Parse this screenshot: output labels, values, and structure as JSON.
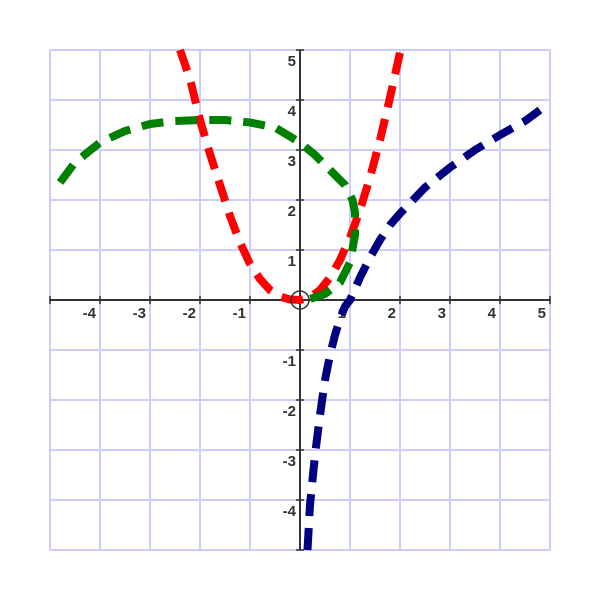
{
  "chart_data": {
    "type": "line",
    "title": "",
    "xlabel": "",
    "ylabel": "",
    "xlim": [
      -5,
      5
    ],
    "ylim": [
      -5,
      5
    ],
    "grid": true,
    "x_ticks": [
      "-4",
      "-3",
      "-2",
      "-1",
      "1",
      "2",
      "3",
      "4",
      "5"
    ],
    "y_ticks": [
      "5",
      "4",
      "3",
      "2",
      "1",
      "-1",
      "-2",
      "-3",
      "-4"
    ],
    "colors": {
      "grid": "#ccccff",
      "axis": "#333333",
      "tick_label": "#333333"
    },
    "series": [
      {
        "color": "#ff0000",
        "style": "dashed",
        "points": [
          [
            -2.4,
            5.0
          ],
          [
            -2.2,
            4.42
          ],
          [
            -2.0,
            3.6
          ],
          [
            -1.8,
            2.92
          ],
          [
            -1.6,
            2.3
          ],
          [
            -1.4,
            1.68
          ],
          [
            -1.2,
            1.15
          ],
          [
            -1.0,
            0.72
          ],
          [
            -0.8,
            0.42
          ],
          [
            -0.6,
            0.2
          ],
          [
            -0.4,
            0.07
          ],
          [
            -0.2,
            0.01
          ],
          [
            0.0,
            0.0
          ],
          [
            0.2,
            0.05
          ],
          [
            0.4,
            0.2
          ],
          [
            0.6,
            0.45
          ],
          [
            0.8,
            0.8
          ],
          [
            1.0,
            1.25
          ],
          [
            1.2,
            1.8
          ],
          [
            1.4,
            2.45
          ],
          [
            1.6,
            3.2
          ],
          [
            1.8,
            4.05
          ],
          [
            2.0,
            4.95
          ],
          [
            2.02,
            5.0
          ]
        ]
      },
      {
        "color": "#008000",
        "style": "dashed",
        "points": [
          [
            -4.8,
            2.35
          ],
          [
            -4.5,
            2.75
          ],
          [
            -4.0,
            3.15
          ],
          [
            -3.5,
            3.38
          ],
          [
            -3.0,
            3.52
          ],
          [
            -2.5,
            3.58
          ],
          [
            -2.0,
            3.6
          ],
          [
            -1.5,
            3.6
          ],
          [
            -1.0,
            3.55
          ],
          [
            -0.5,
            3.45
          ],
          [
            0.0,
            3.15
          ],
          [
            0.3,
            2.9
          ],
          [
            0.6,
            2.6
          ],
          [
            0.9,
            2.3
          ],
          [
            1.05,
            2.0
          ],
          [
            1.1,
            1.75
          ],
          [
            1.1,
            1.3
          ],
          [
            1.0,
            0.75
          ],
          [
            0.8,
            0.35
          ],
          [
            0.5,
            0.12
          ],
          [
            0.2,
            0.02
          ],
          [
            0.0,
            0.0
          ]
        ]
      },
      {
        "color": "#000080",
        "style": "dashed",
        "points": [
          [
            0.15,
            -5.0
          ],
          [
            0.2,
            -4.1
          ],
          [
            0.3,
            -3.1
          ],
          [
            0.4,
            -2.3
          ],
          [
            0.5,
            -1.6
          ],
          [
            0.6,
            -1.1
          ],
          [
            0.7,
            -0.7
          ],
          [
            0.8,
            -0.38
          ],
          [
            0.9,
            -0.13
          ],
          [
            1.0,
            0.0
          ],
          [
            1.2,
            0.45
          ],
          [
            1.4,
            0.85
          ],
          [
            1.6,
            1.2
          ],
          [
            1.8,
            1.5
          ],
          [
            2.0,
            1.73
          ],
          [
            2.5,
            2.25
          ],
          [
            3.0,
            2.65
          ],
          [
            3.5,
            3.0
          ],
          [
            4.0,
            3.3
          ],
          [
            4.5,
            3.58
          ],
          [
            4.8,
            3.8
          ]
        ]
      }
    ]
  }
}
